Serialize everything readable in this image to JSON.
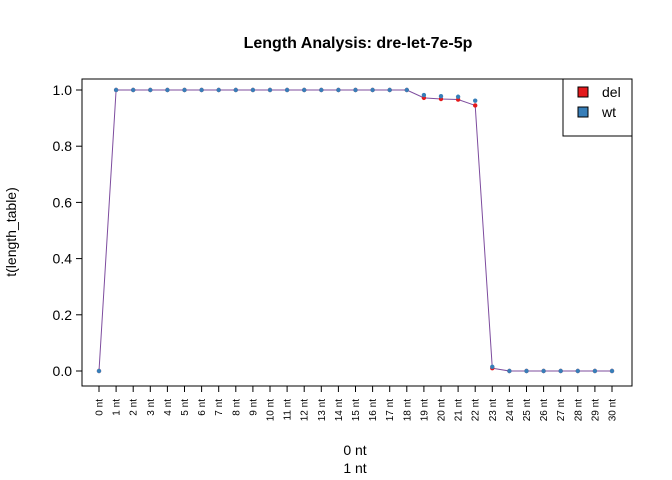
{
  "chart_data": {
    "type": "line",
    "title": "Length Analysis: dre-let-7e-5p",
    "xlabel_lines": [
      "0 nt",
      "1 nt"
    ],
    "ylabel": "t(length_table)",
    "ylim": [
      0,
      1
    ],
    "yticks": [
      "0.0",
      "0.2",
      "0.4",
      "0.6",
      "0.8",
      "1.0"
    ],
    "categories": [
      "0 nt",
      "1 nt",
      "2 nt",
      "3 nt",
      "4 nt",
      "5 nt",
      "6 nt",
      "7 nt",
      "8 nt",
      "9 nt",
      "10 nt",
      "11 nt",
      "12 nt",
      "13 nt",
      "14 nt",
      "15 nt",
      "16 nt",
      "17 nt",
      "18 nt",
      "19 nt",
      "20 nt",
      "21 nt",
      "22 nt",
      "23 nt",
      "24 nt",
      "25 nt",
      "26 nt",
      "27 nt",
      "28 nt",
      "29 nt",
      "30 nt"
    ],
    "series": [
      {
        "name": "del",
        "color": "#e41a1c",
        "values": [
          0.0,
          1.0,
          1.0,
          1.0,
          1.0,
          1.0,
          1.0,
          1.0,
          1.0,
          1.0,
          1.0,
          1.0,
          1.0,
          1.0,
          1.0,
          1.0,
          1.0,
          1.0,
          1.0,
          0.972,
          0.968,
          0.966,
          0.945,
          0.01,
          0.0,
          0.0,
          0.0,
          0.0,
          0.0,
          0.0,
          0.0
        ]
      },
      {
        "name": "wt",
        "color": "#377eb8",
        "values": [
          0.0,
          1.0,
          1.0,
          1.0,
          1.0,
          1.0,
          1.0,
          1.0,
          1.0,
          1.0,
          1.0,
          1.0,
          1.0,
          1.0,
          1.0,
          1.0,
          1.0,
          1.0,
          1.0,
          0.982,
          0.978,
          0.976,
          0.962,
          0.015,
          0.0,
          0.0,
          0.0,
          0.0,
          0.0,
          0.0,
          0.0
        ]
      }
    ],
    "line_color": "#7d4c9e",
    "legend_position": "top-right",
    "grid": false
  }
}
